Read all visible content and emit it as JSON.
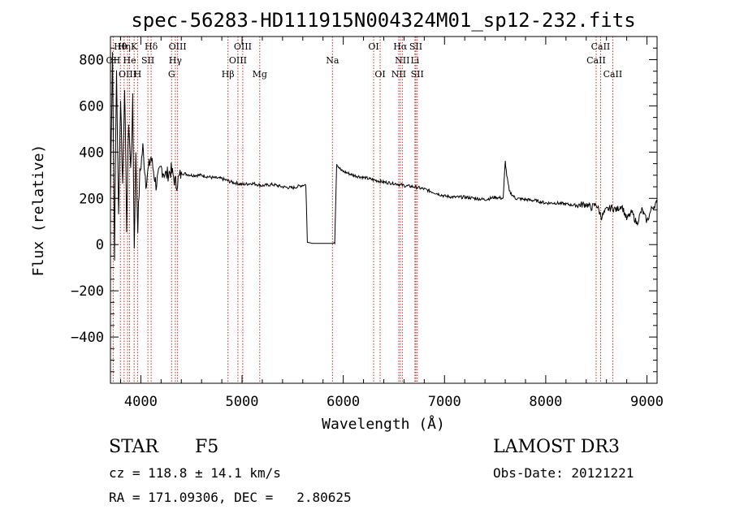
{
  "chart_data": {
    "type": "line",
    "title": "spec-56283-HD111915N004324M01_sp12-232.fits",
    "xlabel": "Wavelength (Å)",
    "ylabel": "Flux (relative)",
    "xlim": [
      3700,
      9100
    ],
    "ylim": [
      -600,
      900
    ],
    "x_ticks": [
      4000,
      5000,
      6000,
      7000,
      8000,
      9000
    ],
    "y_ticks": [
      -400,
      -200,
      0,
      200,
      400,
      600,
      800
    ],
    "x_tick_labels": [
      "4000",
      "5000",
      "6000",
      "7000",
      "8000",
      "9000"
    ],
    "y_tick_labels": [
      "−400",
      "−200",
      "0",
      "200",
      "400",
      "600",
      "800"
    ],
    "line_color": "#000000",
    "marker_color": "#cc2222",
    "spectrum_anchor_points": [
      [
        3700,
        200
      ],
      [
        3720,
        850
      ],
      [
        3740,
        -40
      ],
      [
        3760,
        760
      ],
      [
        3780,
        120
      ],
      [
        3800,
        640
      ],
      [
        3820,
        260
      ],
      [
        3840,
        700
      ],
      [
        3860,
        80
      ],
      [
        3880,
        540
      ],
      [
        3900,
        320
      ],
      [
        3920,
        620
      ],
      [
        3935,
        -20
      ],
      [
        3950,
        380
      ],
      [
        3970,
        80
      ],
      [
        3990,
        300
      ],
      [
        4020,
        420
      ],
      [
        4050,
        270
      ],
      [
        4100,
        380
      ],
      [
        4150,
        260
      ],
      [
        4200,
        330
      ],
      [
        4250,
        300
      ],
      [
        4300,
        320
      ],
      [
        4350,
        260
      ],
      [
        4400,
        310
      ],
      [
        4500,
        300
      ],
      [
        4600,
        300
      ],
      [
        4700,
        290
      ],
      [
        4800,
        285
      ],
      [
        4900,
        270
      ],
      [
        5000,
        260
      ],
      [
        5100,
        265
      ],
      [
        5200,
        255
      ],
      [
        5300,
        260
      ],
      [
        5400,
        250
      ],
      [
        5500,
        245
      ],
      [
        5580,
        255
      ],
      [
        5630,
        260
      ],
      [
        5645,
        10
      ],
      [
        5700,
        5
      ],
      [
        5800,
        5
      ],
      [
        5900,
        5
      ],
      [
        5915,
        10
      ],
      [
        5935,
        350
      ],
      [
        5980,
        320
      ],
      [
        6100,
        300
      ],
      [
        6200,
        290
      ],
      [
        6300,
        280
      ],
      [
        6400,
        270
      ],
      [
        6500,
        265
      ],
      [
        6560,
        260
      ],
      [
        6600,
        255
      ],
      [
        6700,
        250
      ],
      [
        6800,
        240
      ],
      [
        6900,
        225
      ],
      [
        7000,
        210
      ],
      [
        7100,
        205
      ],
      [
        7200,
        205
      ],
      [
        7300,
        200
      ],
      [
        7400,
        195
      ],
      [
        7500,
        205
      ],
      [
        7580,
        200
      ],
      [
        7600,
        360
      ],
      [
        7615,
        300
      ],
      [
        7640,
        230
      ],
      [
        7700,
        200
      ],
      [
        7800,
        195
      ],
      [
        7900,
        190
      ],
      [
        8000,
        180
      ],
      [
        8100,
        180
      ],
      [
        8200,
        175
      ],
      [
        8300,
        170
      ],
      [
        8400,
        175
      ],
      [
        8450,
        160
      ],
      [
        8500,
        175
      ],
      [
        8550,
        120
      ],
      [
        8600,
        150
      ],
      [
        8650,
        160
      ],
      [
        8700,
        150
      ],
      [
        8750,
        170
      ],
      [
        8800,
        110
      ],
      [
        8850,
        140
      ],
      [
        8900,
        90
      ],
      [
        8950,
        150
      ],
      [
        9000,
        100
      ],
      [
        9050,
        160
      ],
      [
        9100,
        180
      ]
    ],
    "line_markers": [
      {
        "label": "Hθ",
        "wavelength": 3798,
        "row": 0
      },
      {
        "label": "Hη",
        "wavelength": 3835,
        "row": 0
      },
      {
        "label": "K",
        "wavelength": 3934,
        "row": 0
      },
      {
        "label": "Hδ",
        "wavelength": 4102,
        "row": 0
      },
      {
        "label": "OIII",
        "wavelength": 4363,
        "row": 0
      },
      {
        "label": "OIII",
        "wavelength": 5007,
        "row": 0
      },
      {
        "label": "OI",
        "wavelength": 6300,
        "row": 0
      },
      {
        "label": "Hα",
        "wavelength": 6563,
        "row": 0
      },
      {
        "label": "SII",
        "wavelength": 6717,
        "row": 0
      },
      {
        "label": "CaII",
        "wavelength": 8542,
        "row": 0
      },
      {
        "label": "OII",
        "wavelength": 3727,
        "row": 1
      },
      {
        "label": "He",
        "wavelength": 3889,
        "row": 1
      },
      {
        "label": "SII",
        "wavelength": 4070,
        "row": 1
      },
      {
        "label": "Hγ",
        "wavelength": 4341,
        "row": 1
      },
      {
        "label": "OIII",
        "wavelength": 4959,
        "row": 1
      },
      {
        "label": "Na",
        "wavelength": 5893,
        "row": 1
      },
      {
        "label": "NII",
        "wavelength": 6583,
        "row": 1
      },
      {
        "label": "Li",
        "wavelength": 6708,
        "row": 1
      },
      {
        "label": "CaII",
        "wavelength": 8498,
        "row": 1
      },
      {
        "label": "OIII",
        "wavelength": 3869,
        "row": 2
      },
      {
        "label": "H",
        "wavelength": 3968,
        "row": 2
      },
      {
        "label": "G",
        "wavelength": 4304,
        "row": 2
      },
      {
        "label": "Hβ",
        "wavelength": 4861,
        "row": 2
      },
      {
        "label": "Mg",
        "wavelength": 5175,
        "row": 2
      },
      {
        "label": "OI",
        "wavelength": 6364,
        "row": 2
      },
      {
        "label": "NII",
        "wavelength": 6548,
        "row": 2
      },
      {
        "label": "SII",
        "wavelength": 6731,
        "row": 2
      },
      {
        "label": "CaII",
        "wavelength": 8662,
        "row": 2
      }
    ]
  },
  "info": {
    "class": "STAR",
    "subclass": "F5",
    "survey": "LAMOST DR3",
    "cz": "cz = 118.8 ± 14.1 km/s",
    "obs_date": "Obs-Date: 20121221",
    "radec": "RA = 171.09306, DEC =   2.80625"
  }
}
